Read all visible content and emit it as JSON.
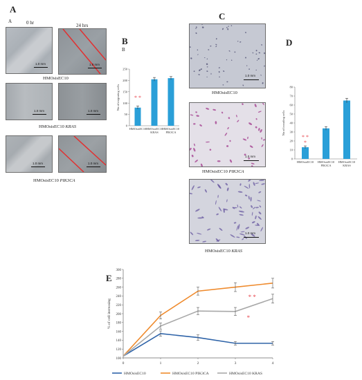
{
  "panel_a": {
    "letter": "A",
    "sub_letter": "A",
    "time_0": "0 hr",
    "time_24": "24 hrs",
    "rows": [
      {
        "caption": "HMOsisEC10",
        "caption_italic": "",
        "scale_left": "1.0 mm",
        "scale_right": "1.0 mm"
      },
      {
        "caption": "HMOsisEC10 ",
        "caption_italic": "KRAS",
        "scale_left": "1.0 mm",
        "scale_right": "1.0 mm"
      },
      {
        "caption": "HMOsisEC10 ",
        "caption_italic": "PIK3CA",
        "scale_left": "1.0 mm",
        "scale_right": "1.0 mm"
      }
    ]
  },
  "panel_b": {
    "letter": "B",
    "sub_letter": "B"
  },
  "panel_c": {
    "letter": "C",
    "rows": [
      {
        "caption": "HMOsisEC10",
        "caption_italic": "",
        "scale": "1.0 mm"
      },
      {
        "caption": "HMOsisEC10 ",
        "caption_italic": "PIK3CA",
        "scale": "1.0 mm"
      },
      {
        "caption": "HMOsisEC10 ",
        "caption_italic": "KRAS",
        "scale": "1.0 mm"
      }
    ]
  },
  "panel_d": {
    "letter": "D"
  },
  "panel_e": {
    "letter": "E"
  },
  "colors": {
    "bar": "#2a9fd8",
    "star": "#e8474f",
    "line_ec10": "#2e63a8",
    "line_pik3ca": "#ef8a2c",
    "line_kras": "#a8a8a8"
  },
  "chart_data": [
    {
      "id": "B",
      "type": "bar",
      "categories": [
        "HMOsisEC10",
        "HMOsisEC10 KRAS",
        "HMOsisEC10 PIK3CA"
      ],
      "values": [
        80,
        205,
        210
      ],
      "errors": [
        7,
        8,
        7
      ],
      "ylabel": "No of migrating cells",
      "ylim": [
        0,
        250
      ],
      "yticks": [
        0,
        50,
        100,
        150,
        200,
        250
      ],
      "annotation": "* *"
    },
    {
      "id": "D",
      "type": "bar",
      "categories": [
        "HMOsisEC10",
        "HMOsisEC10 PIK3CA",
        "HMOsisEC10 KRAS"
      ],
      "values": [
        13,
        34,
        65
      ],
      "errors": [
        1.5,
        2,
        2.5
      ],
      "ylabel": "No of invading cells",
      "ylim": [
        0,
        80
      ],
      "yticks": [
        0,
        10,
        20,
        30,
        40,
        50,
        60,
        70,
        80
      ],
      "annotation_top": "* *",
      "annotation_bottom": "*"
    },
    {
      "id": "E",
      "type": "line",
      "x": [
        0,
        1,
        2,
        3,
        4
      ],
      "xticks": [
        0,
        1,
        2,
        3,
        4
      ],
      "ylim": [
        100,
        300
      ],
      "yticks": [
        100,
        120,
        140,
        160,
        180,
        200,
        220,
        240,
        260,
        280,
        300
      ],
      "ylabel": "% of cell increasing",
      "grid": false,
      "legend": "bottom",
      "series": [
        {
          "name": "HMOsisEC10",
          "values": [
            104,
            155,
            146,
            133,
            133
          ],
          "errors": [
            0,
            6,
            6,
            4,
            4
          ]
        },
        {
          "name": "HMOsisEC10 PIK3CA",
          "values": [
            104,
            196,
            251,
            260,
            269
          ],
          "errors": [
            0,
            8,
            9,
            10,
            11
          ]
        },
        {
          "name": "HMOsisEC10 KRAS",
          "values": [
            104,
            172,
            206,
            205,
            234
          ],
          "errors": [
            0,
            7,
            8,
            9,
            10
          ]
        }
      ],
      "annotations": [
        "* *",
        "*"
      ]
    }
  ]
}
